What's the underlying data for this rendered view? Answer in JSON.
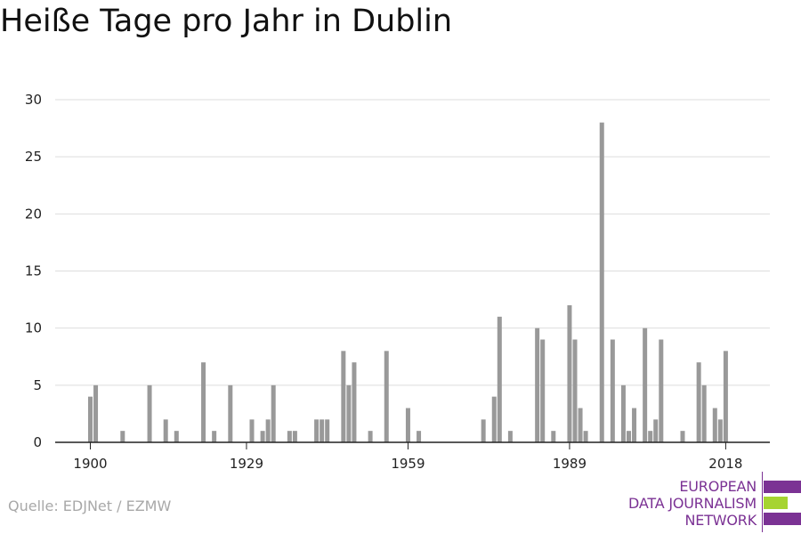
{
  "chart_data": {
    "type": "bar",
    "title": "Heiße Tage pro Jahr in Dublin",
    "xlabel": "",
    "ylabel": "",
    "x_ticks": [
      1900,
      1929,
      1959,
      1989,
      2018
    ],
    "y_ticks": [
      0,
      5,
      10,
      15,
      20,
      25,
      30
    ],
    "ylim": [
      0,
      30
    ],
    "xlim": [
      1900,
      2021
    ],
    "grid": true,
    "legend": "none",
    "series": [
      {
        "color": "#999999",
        "points": [
          {
            "x": 1900,
            "y": 4
          },
          {
            "x": 1901,
            "y": 5
          },
          {
            "x": 1906,
            "y": 1
          },
          {
            "x": 1911,
            "y": 5
          },
          {
            "x": 1914,
            "y": 2
          },
          {
            "x": 1916,
            "y": 1
          },
          {
            "x": 1921,
            "y": 7
          },
          {
            "x": 1923,
            "y": 1
          },
          {
            "x": 1926,
            "y": 5
          },
          {
            "x": 1930,
            "y": 2
          },
          {
            "x": 1932,
            "y": 1
          },
          {
            "x": 1933,
            "y": 2
          },
          {
            "x": 1934,
            "y": 5
          },
          {
            "x": 1937,
            "y": 1
          },
          {
            "x": 1938,
            "y": 1
          },
          {
            "x": 1942,
            "y": 2
          },
          {
            "x": 1943,
            "y": 2
          },
          {
            "x": 1944,
            "y": 2
          },
          {
            "x": 1947,
            "y": 8
          },
          {
            "x": 1948,
            "y": 5
          },
          {
            "x": 1949,
            "y": 7
          },
          {
            "x": 1952,
            "y": 1
          },
          {
            "x": 1955,
            "y": 8
          },
          {
            "x": 1959,
            "y": 3
          },
          {
            "x": 1961,
            "y": 1
          },
          {
            "x": 1973,
            "y": 2
          },
          {
            "x": 1975,
            "y": 4
          },
          {
            "x": 1976,
            "y": 11
          },
          {
            "x": 1978,
            "y": 1
          },
          {
            "x": 1983,
            "y": 10
          },
          {
            "x": 1984,
            "y": 9
          },
          {
            "x": 1986,
            "y": 1
          },
          {
            "x": 1989,
            "y": 12
          },
          {
            "x": 1990,
            "y": 9
          },
          {
            "x": 1991,
            "y": 3
          },
          {
            "x": 1992,
            "y": 1
          },
          {
            "x": 1995,
            "y": 28
          },
          {
            "x": 1997,
            "y": 9
          },
          {
            "x": 1999,
            "y": 5
          },
          {
            "x": 2000,
            "y": 1
          },
          {
            "x": 2001,
            "y": 3
          },
          {
            "x": 2003,
            "y": 10
          },
          {
            "x": 2004,
            "y": 1
          },
          {
            "x": 2005,
            "y": 2
          },
          {
            "x": 2006,
            "y": 9
          },
          {
            "x": 2010,
            "y": 1
          },
          {
            "x": 2013,
            "y": 7
          },
          {
            "x": 2014,
            "y": 5
          },
          {
            "x": 2016,
            "y": 3
          },
          {
            "x": 2017,
            "y": 2
          },
          {
            "x": 2018,
            "y": 8
          }
        ]
      }
    ]
  },
  "source": "Quelle: EDJNet / EZMW",
  "logo": {
    "line1": "EUROPEAN",
    "line2": "DATA JOURNALISM",
    "line3": "NETWORK",
    "color_purple": "#7b3294",
    "color_green": "#a6d431"
  },
  "colors": {
    "bar": "#999999",
    "grid": "#dddddd",
    "axis": "#222222"
  }
}
